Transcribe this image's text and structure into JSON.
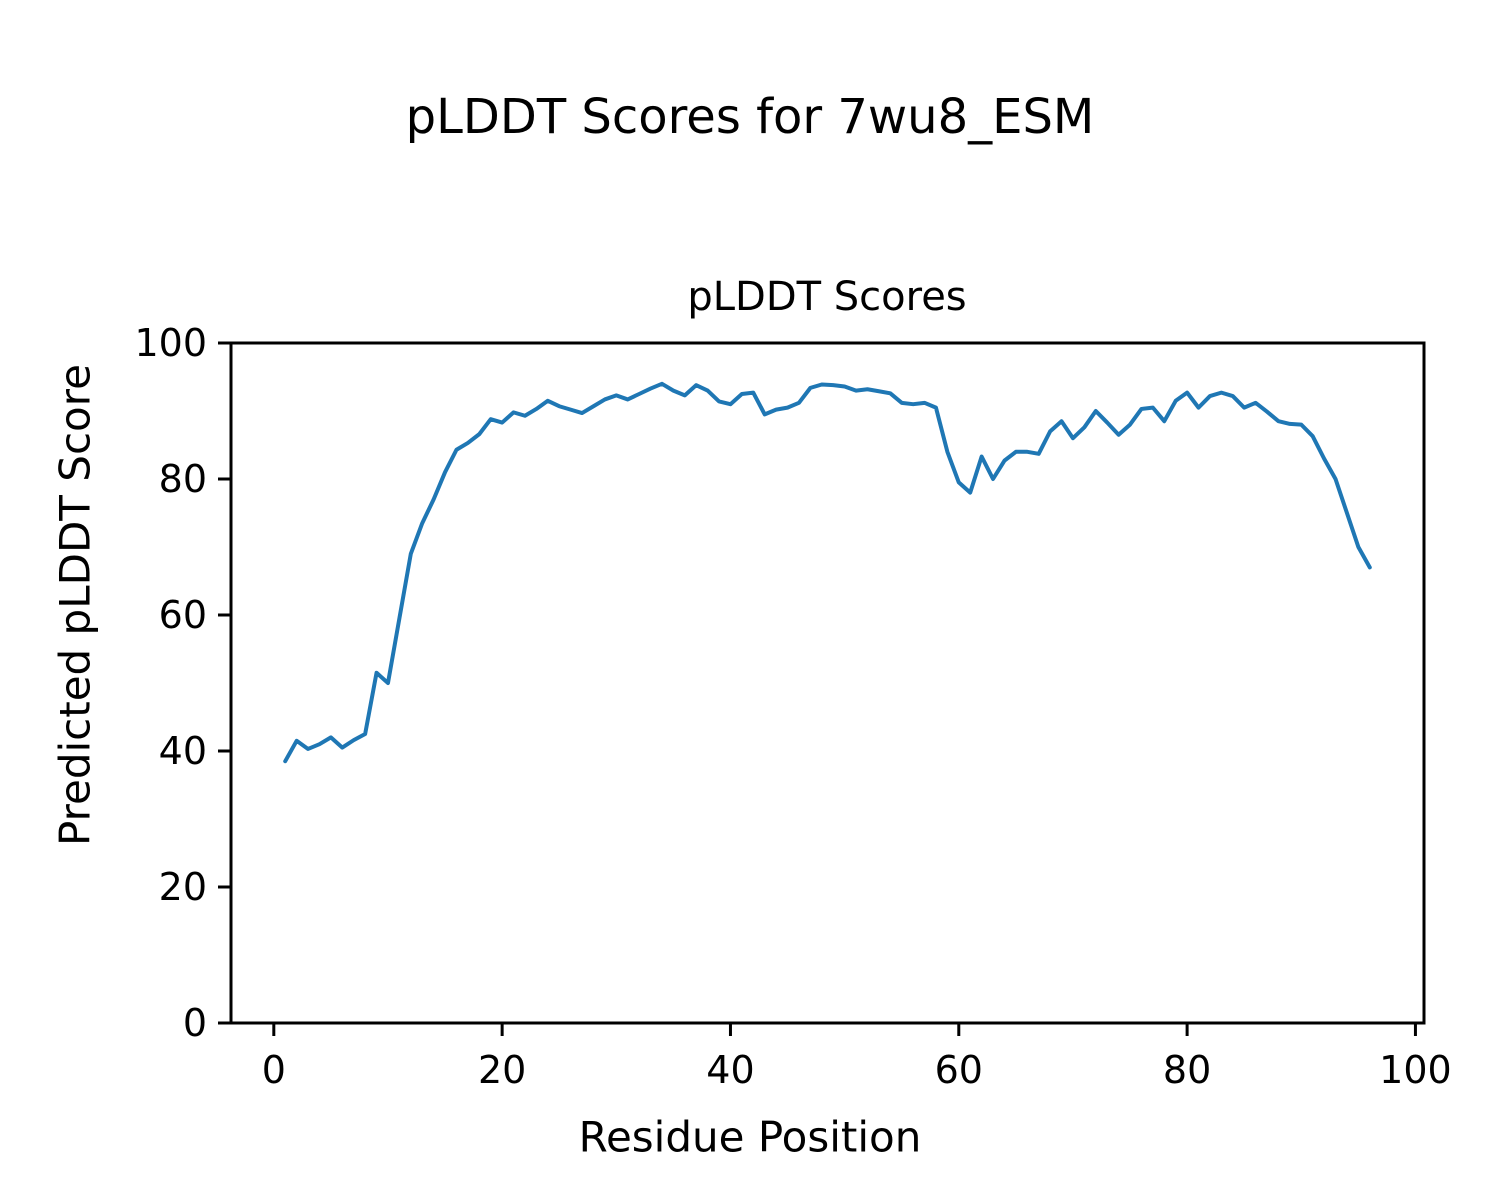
{
  "figure": {
    "suptitle": "pLDDT Scores for 7wu8_ESM",
    "background_color": "#ffffff",
    "text_color": "#000000"
  },
  "chart_data": {
    "type": "line",
    "title": "pLDDT Scores",
    "xlabel": "Residue Position",
    "ylabel": "Predicted pLDDT Score",
    "xlim": [
      -3.75,
      100.75
    ],
    "ylim": [
      0,
      100
    ],
    "xticks": [
      0,
      20,
      40,
      60,
      80,
      100
    ],
    "yticks": [
      0,
      20,
      40,
      60,
      80,
      100
    ],
    "grid": false,
    "legend": null,
    "line_color": "#1f77b4",
    "line_width": 4,
    "axis_color": "#000000",
    "series": [
      {
        "name": "pLDDT",
        "x": [
          1,
          2,
          3,
          4,
          5,
          6,
          7,
          8,
          9,
          10,
          11,
          12,
          13,
          14,
          15,
          16,
          17,
          18,
          19,
          20,
          21,
          22,
          23,
          24,
          25,
          26,
          27,
          28,
          29,
          30,
          31,
          32,
          33,
          34,
          35,
          36,
          37,
          38,
          39,
          40,
          41,
          42,
          43,
          44,
          45,
          46,
          47,
          48,
          49,
          50,
          51,
          52,
          53,
          54,
          55,
          56,
          57,
          58,
          59,
          60,
          61,
          62,
          63,
          64,
          65,
          66,
          67,
          68,
          69,
          70,
          71,
          72,
          73,
          74,
          75,
          76,
          77,
          78,
          79,
          80,
          81,
          82,
          83,
          84,
          85,
          86,
          87,
          88,
          89,
          90,
          91,
          92,
          93,
          94,
          95,
          96
        ],
        "values": [
          38.5,
          41.5,
          40.3,
          41.0,
          42.0,
          40.5,
          41.6,
          42.5,
          51.5,
          50.0,
          59.5,
          69.0,
          73.5,
          77.0,
          81.0,
          84.3,
          85.3,
          86.6,
          88.8,
          88.3,
          89.8,
          89.3,
          90.3,
          91.5,
          90.7,
          90.2,
          89.7,
          90.7,
          91.7,
          92.3,
          91.7,
          92.5,
          93.3,
          94.0,
          93.0,
          92.3,
          93.8,
          93.0,
          91.4,
          91.0,
          92.5,
          92.7,
          89.5,
          90.2,
          90.5,
          91.2,
          93.4,
          93.9,
          93.8,
          93.6,
          93.0,
          93.2,
          92.9,
          92.6,
          91.2,
          91.0,
          91.2,
          90.5,
          84.0,
          79.5,
          78.0,
          83.3,
          80.0,
          82.7,
          84.0,
          84.0,
          83.7,
          87.0,
          88.5,
          86.0,
          87.6,
          90.0,
          88.3,
          86.5,
          88.0,
          90.3,
          90.5,
          88.5,
          91.5,
          92.7,
          90.5,
          92.2,
          92.7,
          92.2,
          90.5,
          91.2,
          89.9,
          88.5,
          88.1,
          88.0,
          86.3,
          83.0,
          80.0,
          75.0,
          70.0,
          67.0
        ]
      }
    ]
  }
}
